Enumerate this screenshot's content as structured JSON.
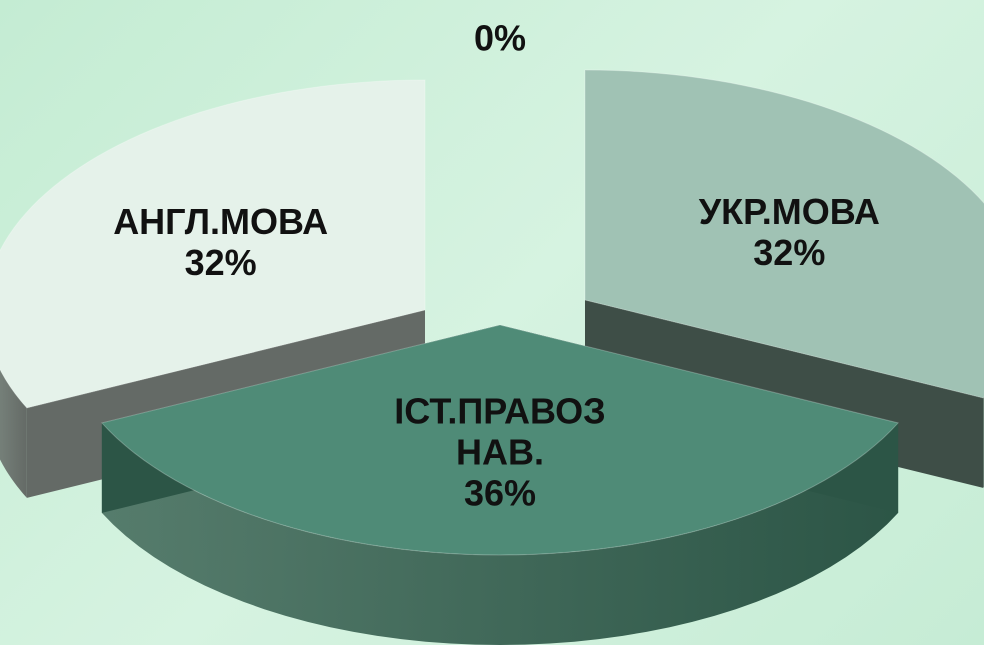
{
  "chart_data": {
    "type": "pie3d",
    "categories": [
      "УКР.МОВА",
      "ІСТ.ПРАВОЗНАВ.",
      "АНГЛ.МОВА",
      null
    ],
    "values": [
      32,
      36,
      32,
      0
    ],
    "value_labels": [
      "32%",
      "36%",
      "32%",
      "0%"
    ],
    "colors": [
      "#a0c2b4",
      "#4f8b77",
      "#e5f2ea",
      "#7aa898"
    ],
    "side_colors": [
      "#3e4e47",
      "#2c5546",
      "#646a66",
      "#555555"
    ]
  }
}
